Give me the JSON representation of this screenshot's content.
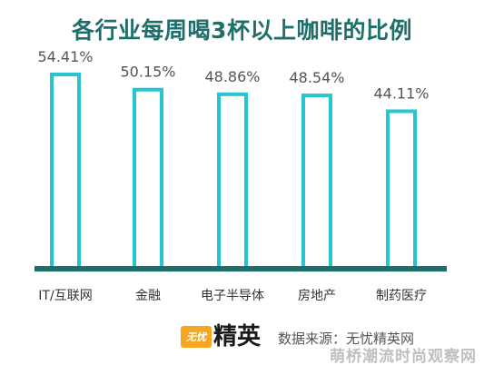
{
  "title": "各行业每周喝3杯以上咖啡的比例",
  "chart_data": {
    "type": "bar",
    "title": "各行业每周喝3杯以上咖啡的比例",
    "categories": [
      "IT/互联网",
      "金融",
      "电子半导体",
      "房地产",
      "制药医疗"
    ],
    "values": [
      54.41,
      50.15,
      48.86,
      48.54,
      44.11
    ],
    "value_labels": [
      "54.41%",
      "50.15%",
      "48.86%",
      "48.54%",
      "44.11%"
    ],
    "ylim": [
      0,
      60
    ],
    "grid": false,
    "bar_style": "outlined",
    "colors": {
      "bar_stroke": "#26c6d0",
      "baseline": "#1e6f6c",
      "title": "#1e6f6c"
    }
  },
  "footer": {
    "logo_badge": "无忧",
    "logo_word": "精英",
    "source": "数据来源：无忧精英网"
  },
  "watermark": "萌桥潮流时尚观察网"
}
